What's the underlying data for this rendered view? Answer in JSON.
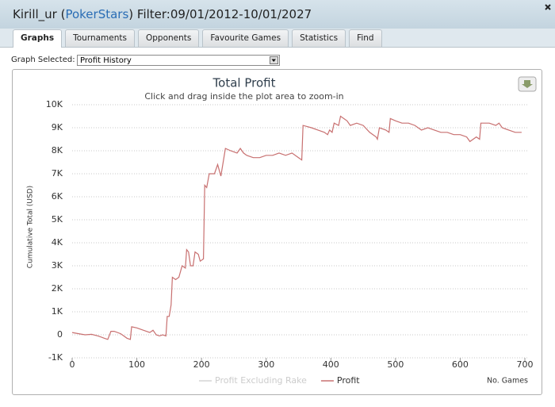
{
  "header": {
    "title_prefix": "Kirill_ur (",
    "site": "PokerStars",
    "title_suffix": ") Filter:09/01/2012-10/01/2027"
  },
  "tabs": [
    "Graphs",
    "Tournaments",
    "Opponents",
    "Favourite Games",
    "Statistics",
    "Find"
  ],
  "active_tab": 0,
  "graph_selector": {
    "label": "Graph Selected:",
    "value": "Profit History"
  },
  "chart_data": {
    "type": "line",
    "title": "Total Profit",
    "subtitle": "Click and drag inside the plot area to zoom-in",
    "y_label": "Cumulative Total (USD)",
    "x_label": "No. Games",
    "xlim": [
      0,
      700
    ],
    "xticks": [
      0,
      100,
      200,
      300,
      400,
      500,
      600,
      700
    ],
    "ylim": [
      -1000,
      10000
    ],
    "yticks": [
      {
        "value": -1000,
        "label": "-1K"
      },
      0,
      {
        "value": 1000,
        "label": "1K"
      },
      {
        "value": 2000,
        "label": "2K"
      },
      {
        "value": 3000,
        "label": "3K"
      },
      {
        "value": 4000,
        "label": "4K"
      },
      {
        "value": 5000,
        "label": "5K"
      },
      {
        "value": 6000,
        "label": "6K"
      },
      {
        "value": 7000,
        "label": "7K"
      },
      {
        "value": 8000,
        "label": "8K"
      },
      {
        "value": 9000,
        "label": "9K"
      },
      {
        "value": 10000,
        "label": "10K"
      }
    ],
    "grid": true,
    "x": [
      0,
      10,
      20,
      30,
      40,
      50,
      55,
      60,
      65,
      75,
      85,
      90,
      92,
      100,
      110,
      120,
      125,
      130,
      135,
      140,
      145,
      147,
      150,
      153,
      155,
      160,
      165,
      170,
      175,
      177,
      180,
      183,
      187,
      190,
      195,
      198,
      203,
      205,
      208,
      212,
      220,
      225,
      230,
      237,
      245,
      255,
      260,
      265,
      270,
      280,
      290,
      300,
      310,
      320,
      330,
      340,
      350,
      355,
      357,
      370,
      380,
      390,
      395,
      398,
      402,
      405,
      412,
      415,
      425,
      430,
      440,
      450,
      460,
      470,
      472,
      475,
      485,
      490,
      492,
      500,
      510,
      520,
      530,
      540,
      550,
      560,
      570,
      580,
      590,
      600,
      610,
      615,
      625,
      630,
      632,
      645,
      655,
      660,
      665,
      675,
      685,
      695
    ],
    "series": [
      {
        "name": "Profit Excluding Rake",
        "color": "#d4d4d4",
        "visible": false
      },
      {
        "name": "Profit",
        "color": "#c87070",
        "visible": true,
        "values": [
          100,
          50,
          0,
          20,
          -50,
          -150,
          -200,
          150,
          150,
          50,
          -150,
          -200,
          350,
          300,
          200,
          100,
          200,
          0,
          -50,
          0,
          -50,
          800,
          800,
          1300,
          2500,
          2400,
          2500,
          3000,
          2900,
          3700,
          3600,
          3000,
          3000,
          3600,
          3500,
          3200,
          3300,
          6500,
          6400,
          7000,
          7000,
          7400,
          6900,
          8100,
          8000,
          7900,
          8100,
          7900,
          7800,
          7700,
          7700,
          7800,
          7800,
          7900,
          7800,
          7900,
          7700,
          7600,
          9100,
          9000,
          8900,
          8800,
          8700,
          8900,
          8800,
          9200,
          9100,
          9500,
          9300,
          9100,
          9200,
          9100,
          8800,
          8600,
          8500,
          9000,
          8900,
          8800,
          9400,
          9300,
          9200,
          9200,
          9100,
          8900,
          9000,
          8900,
          8800,
          8800,
          8700,
          8700,
          8600,
          8400,
          8600,
          8500,
          9200,
          9200,
          9100,
          9200,
          9000,
          8900,
          8800,
          8800
        ]
      }
    ]
  }
}
